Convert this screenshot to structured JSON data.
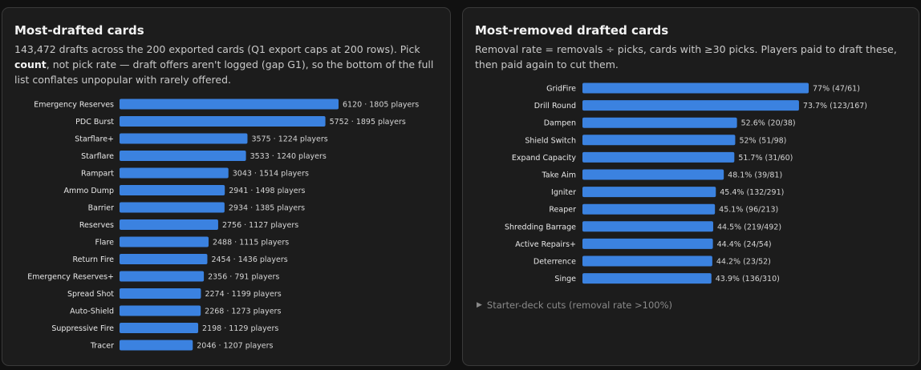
{
  "colors": {
    "bar": "#3b82e0",
    "background": "#111111",
    "panel": "#1c1c1c"
  },
  "left": {
    "title": "Most-drafted cards",
    "desc_pre": "143,472 drafts across the 200 exported cards (Q1 export caps at 200 rows). Pick ",
    "desc_bold": "count",
    "desc_post": ", not pick rate — draft offers aren't logged (gap G1), so the bottom of the full list conflates unpopular with rarely offered."
  },
  "right": {
    "title": "Most-removed drafted cards",
    "desc": "Removal rate = removals ÷ picks, cards with ≥30 picks. Players paid to draft these, then paid again to cut them.",
    "details_icon": "triangle-right-icon",
    "details_label": "Starter-deck cuts (removal rate >100%)"
  },
  "chart_data": [
    {
      "type": "bar",
      "orientation": "horizontal",
      "title": "Most-drafted cards",
      "categories": [
        "Emergency Reserves",
        "PDC Burst",
        "Starflare+",
        "Starflare",
        "Rampart",
        "Ammo Dump",
        "Barrier",
        "Reserves",
        "Flare",
        "Return Fire",
        "Emergency Reserves+",
        "Spread Shot",
        "Auto-Shield",
        "Suppressive Fire",
        "Tracer"
      ],
      "series": [
        {
          "values": [
            6120,
            5752,
            3575,
            3533,
            3043,
            2941,
            2934,
            2756,
            2488,
            2454,
            2356,
            2274,
            2268,
            2198,
            2046
          ]
        }
      ],
      "players": [
        1805,
        1895,
        1224,
        1240,
        1514,
        1498,
        1385,
        1127,
        1115,
        1436,
        791,
        1199,
        1273,
        1129,
        1207
      ],
      "value_labels": [
        "6120 · 1805 players",
        "5752 · 1895 players",
        "3575 · 1224 players",
        "3533 · 1240 players",
        "3043 · 1514 players",
        "2941 · 1498 players",
        "2934 · 1385 players",
        "2756 · 1127 players",
        "2488 · 1115 players",
        "2454 · 1436 players",
        "2356 · 791 players",
        "2274 · 1199 players",
        "2268 · 1273 players",
        "2198 · 1129 players",
        "2046 · 1207 players"
      ],
      "xlim": [
        0,
        6120
      ],
      "grid": false
    },
    {
      "type": "bar",
      "orientation": "horizontal",
      "title": "Most-removed drafted cards",
      "categories": [
        "GridFire",
        "Drill Round",
        "Dampen",
        "Shield Switch",
        "Expand Capacity",
        "Take Aim",
        "Igniter",
        "Reaper",
        "Shredding Barrage",
        "Active Repairs+",
        "Deterrence",
        "Singe"
      ],
      "series": [
        {
          "values": [
            77,
            73.7,
            52.6,
            52,
            51.7,
            48.1,
            45.4,
            45.1,
            44.5,
            44.4,
            44.2,
            43.9
          ]
        }
      ],
      "removals": [
        47,
        123,
        20,
        51,
        31,
        39,
        132,
        96,
        219,
        24,
        23,
        136
      ],
      "picks": [
        61,
        167,
        38,
        98,
        60,
        81,
        291,
        213,
        492,
        54,
        52,
        310
      ],
      "value_labels": [
        "77% (47/61)",
        "73.7% (123/167)",
        "52.6% (20/38)",
        "52% (51/98)",
        "51.7% (31/60)",
        "48.1% (39/81)",
        "45.4% (132/291)",
        "45.1% (96/213)",
        "44.5% (219/492)",
        "44.4% (24/54)",
        "44.2% (23/52)",
        "43.9% (136/310)"
      ],
      "unit": "%",
      "xlim": [
        0,
        77
      ],
      "grid": false
    }
  ]
}
